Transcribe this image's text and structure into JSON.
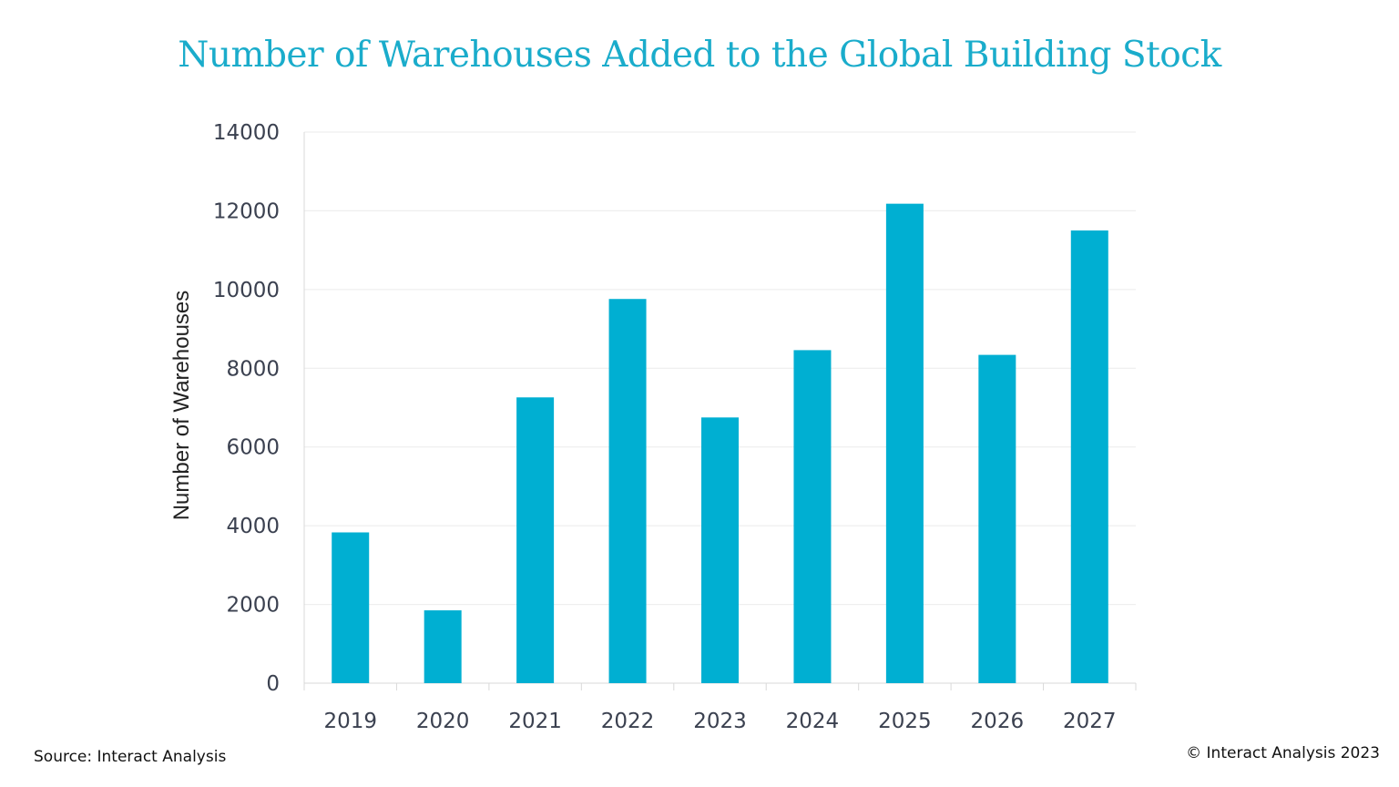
{
  "chart_data": {
    "type": "bar",
    "title": "Number of Warehouses Added to the Global Building Stock",
    "xlabel": "",
    "ylabel": "Number of Warehouses",
    "categories": [
      "2019",
      "2020",
      "2021",
      "2022",
      "2023",
      "2024",
      "2025",
      "2026",
      "2027"
    ],
    "values": [
      3830,
      1850,
      7260,
      9760,
      6750,
      8460,
      12180,
      8340,
      11500
    ],
    "ylim": [
      0,
      14000
    ],
    "yticks": [
      0,
      2000,
      4000,
      6000,
      8000,
      10000,
      12000,
      14000
    ],
    "ytick_labels": [
      "0",
      "2000",
      "4000",
      "6000",
      "8000",
      "10000",
      "12000",
      "14000"
    ],
    "grid": true,
    "legend": "none",
    "bar_color": "#00afd2"
  },
  "footer": {
    "source": "Source: Interact Analysis",
    "copyright": "© Interact Analysis 2023"
  }
}
